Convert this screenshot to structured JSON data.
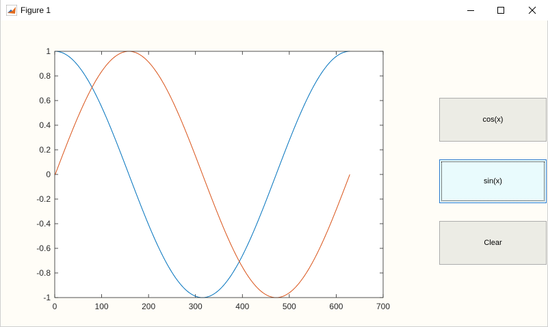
{
  "window": {
    "title": "Figure 1"
  },
  "buttons": {
    "cos_label": "cos(x)",
    "sin_label": "sin(x)",
    "clear_label": "Clear",
    "active": "sin"
  },
  "colors": {
    "cos_line": "#0072bd",
    "sin_line": "#d95319",
    "axes": "#262626",
    "background": "#fffdf7"
  },
  "chart_data": {
    "type": "line",
    "title": "",
    "xlabel": "",
    "ylabel": "",
    "xlim": [
      0,
      700
    ],
    "ylim": [
      -1,
      1
    ],
    "x_ticks": [
      "0",
      "100",
      "200",
      "300",
      "400",
      "500",
      "600",
      "700"
    ],
    "y_ticks": [
      "1",
      "0.8",
      "0.6",
      "0.4",
      "0.2",
      "0",
      "-0.2",
      "-0.4",
      "-0.6",
      "-0.8",
      "-1"
    ],
    "grid": false,
    "legend": "none",
    "series": [
      {
        "function": "cos",
        "x_start": 1,
        "x_end": 629,
        "period": 628,
        "color": "#0072bd"
      },
      {
        "function": "sin",
        "x_start": 1,
        "x_end": 629,
        "period": 628,
        "color": "#d95319"
      }
    ]
  }
}
